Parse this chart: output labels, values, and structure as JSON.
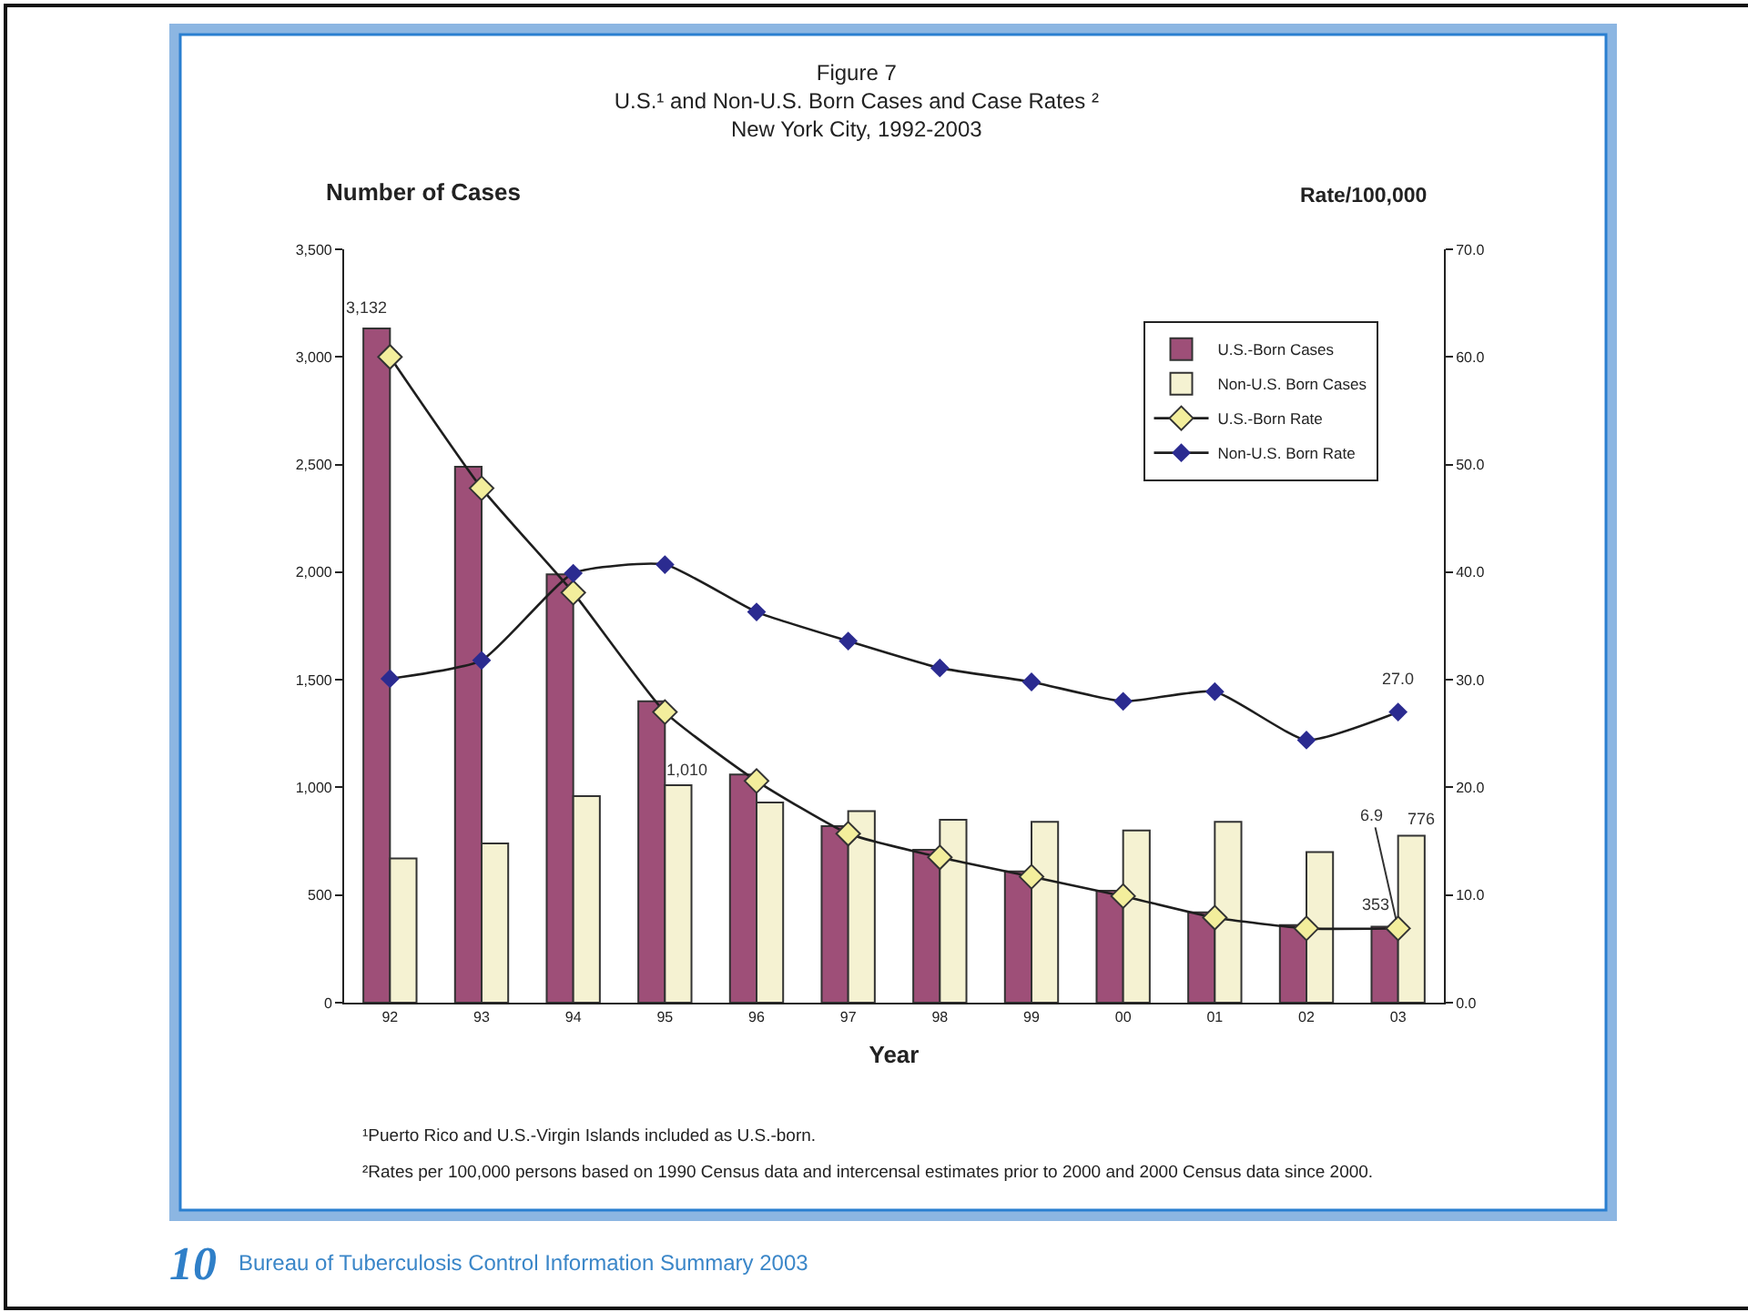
{
  "chart_data": {
    "type": "bar",
    "title": "Figure 7\nU.S.¹ and Non-U.S. Born Cases and Case Rates ²\nNew York City, 1992-2003",
    "xlabel": "Year",
    "ylabel": "Number of Cases",
    "y2label": "Rate/100,000",
    "categories": [
      "92",
      "93",
      "94",
      "95",
      "96",
      "97",
      "98",
      "99",
      "00",
      "01",
      "02",
      "03"
    ],
    "series": [
      {
        "name": "U.S.-Born Cases",
        "color": "#9e4f78",
        "values": [
          3132,
          2490,
          1990,
          1400,
          1060,
          820,
          710,
          610,
          520,
          420,
          360,
          353
        ],
        "value_labels": [
          "3,132",
          null,
          null,
          null,
          null,
          null,
          null,
          null,
          null,
          null,
          null,
          "353"
        ]
      },
      {
        "name": "Non-U.S. Born Cases",
        "color": "#f5f2d2",
        "values": [
          670,
          740,
          960,
          1010,
          930,
          890,
          850,
          840,
          800,
          840,
          700,
          776
        ],
        "value_labels": [
          null,
          null,
          null,
          "1,010",
          null,
          null,
          null,
          null,
          null,
          null,
          null,
          "776"
        ]
      },
      {
        "name": "U.S.-Born Rate",
        "type": "line",
        "axis": "y2",
        "color": "#f3ee9c",
        "marker": "diamond",
        "values": [
          60.0,
          47.8,
          38.1,
          27.0,
          20.6,
          15.7,
          13.5,
          11.7,
          9.9,
          7.9,
          6.9,
          6.9
        ],
        "value_labels": [
          null,
          null,
          null,
          null,
          null,
          null,
          null,
          null,
          null,
          null,
          null,
          "6.9"
        ]
      },
      {
        "name": "Non-U.S. Born Rate",
        "type": "line",
        "axis": "y2",
        "color": "#2b2b90",
        "marker": "diamond",
        "values": [
          30.1,
          31.8,
          39.9,
          40.7,
          36.3,
          33.6,
          31.1,
          29.8,
          28.0,
          28.9,
          24.4,
          27.0
        ],
        "value_labels": [
          null,
          null,
          null,
          null,
          null,
          null,
          null,
          null,
          null,
          null,
          null,
          "27.0"
        ]
      }
    ],
    "ylim": [
      0,
      3500
    ],
    "yticks": [
      0,
      500,
      {
        "value": 1000,
        "label": "1,000"
      },
      {
        "value": 1500,
        "label": "1,500"
      },
      {
        "value": 2000,
        "label": "2,000"
      },
      {
        "value": 2500,
        "label": "2,500"
      },
      {
        "value": 3000,
        "label": "3,000"
      },
      {
        "value": 3500,
        "label": "3,500"
      }
    ],
    "y2lim": [
      0,
      70
    ],
    "y2ticks": [
      {
        "value": 0,
        "label": "0.0"
      },
      {
        "value": 10,
        "label": "10.0"
      },
      {
        "value": 20,
        "label": "20.0"
      },
      {
        "value": 30,
        "label": "30.0"
      },
      {
        "value": 40,
        "label": "40.0"
      },
      {
        "value": 50,
        "label": "50.0"
      },
      {
        "value": 60,
        "label": "60.0"
      },
      {
        "value": 70,
        "label": "70.0"
      }
    ],
    "legend": "top right",
    "annotations": [
      "¹Puerto Rico and U.S.-Virgin Islands included as U.S.-born.",
      "²Rates per 100,000 persons based on 1990 Census data and intercensal estimates prior to 2000 and 2000 Census data since 2000.",
      "10",
      "Bureau of Tuberculosis Control Information Summary 2003"
    ]
  }
}
